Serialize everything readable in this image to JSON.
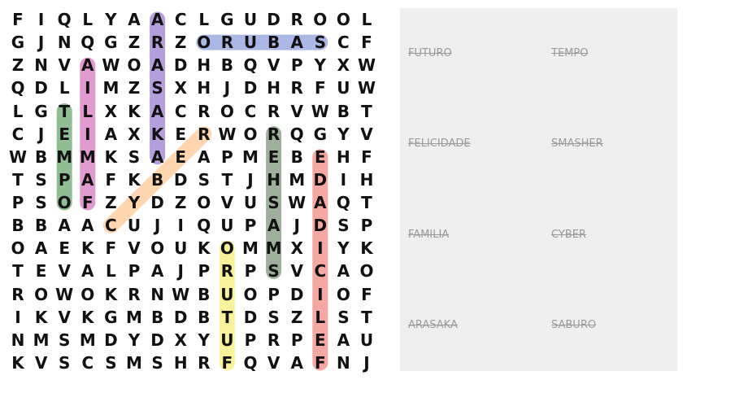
{
  "grid": [
    "FIQLYAACLGUDROOL",
    "GJNQGZRZORUBASCF",
    "ZNVAWOADHBQVPYXW",
    "QDLIMZSXHJDHRFUW",
    "LGTLXKACROCRVWBT",
    "CJEIAXKERWORQGYV",
    "WBMMKSAEAPMEBEHF",
    "TSPAFKBDSTJHMDIH",
    "PSOFZYDZOVUSWAQT",
    "BBAACUJIQUPAJDSP",
    "OAEKFVOUKOMMXIYK",
    "TEVALPAJPRPSVCAO",
    "ROWOKRNWBUOPDIOF",
    "IKVKGMBDBTDSZLST",
    "NMSMDYDXYUPRPEAU",
    "KVSCSMSHRFQVAFNJ"
  ],
  "found_words": [
    {
      "word": "ARASAKA",
      "color": "#9b7fd0",
      "from": [
        0,
        6
      ],
      "to": [
        6,
        6
      ]
    },
    {
      "word": "SABURO",
      "color": "#8f9fdc",
      "from": [
        1,
        13
      ],
      "to": [
        1,
        8
      ]
    },
    {
      "word": "FAMILIA",
      "color": "#d778bf",
      "from": [
        8,
        3
      ],
      "to": [
        2,
        3
      ]
    },
    {
      "word": "TEMPO",
      "color": "#6aa870",
      "from": [
        4,
        2
      ],
      "to": [
        8,
        2
      ]
    },
    {
      "word": "CYBER",
      "color": "#ffc896",
      "from": [
        9,
        4
      ],
      "to": [
        5,
        8
      ]
    },
    {
      "word": "SMASHER",
      "color": "#7d967a",
      "from": [
        11,
        11
      ],
      "to": [
        5,
        11
      ]
    },
    {
      "word": "FELICIDADE",
      "color": "#f28b82",
      "from": [
        15,
        13
      ],
      "to": [
        6,
        13
      ]
    },
    {
      "word": "FUTURO",
      "color": "#f5ee7a",
      "from": [
        15,
        9
      ],
      "to": [
        10,
        9
      ]
    }
  ],
  "word_list": [
    {
      "left": "FUTURO",
      "right": "TEMPO"
    },
    {
      "left": "FELICIDADE",
      "right": "SMASHER"
    },
    {
      "left": "FAMILIA",
      "right": "CYBER"
    },
    {
      "left": "ARASAKA",
      "right": "SABURO"
    }
  ]
}
